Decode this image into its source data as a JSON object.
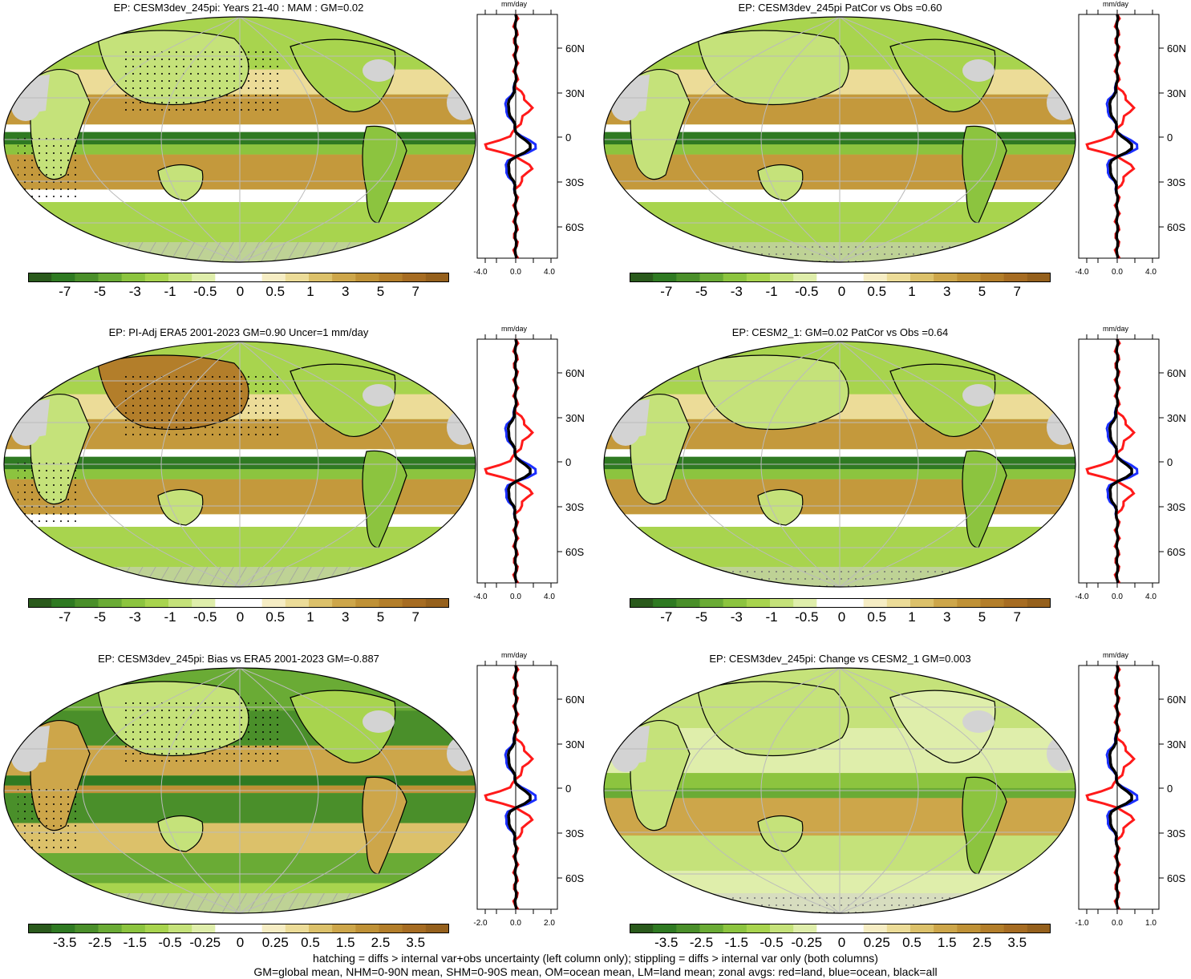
{
  "panels": [
    {
      "title": "EP: CESM3dev_245pi: Years 21-40 : MAM : GM=0.02",
      "zonal": {
        "units": "mm/day",
        "xticks": [
          "-4.0",
          "0.0",
          "4.0"
        ],
        "lat_labels": [
          "60N",
          "30N",
          "0",
          "30S",
          "60S"
        ]
      },
      "colorbar": {
        "labels": [
          "-7",
          "-5",
          "-3",
          "-1",
          "-0.5",
          "0",
          "0.5",
          "1",
          "3",
          "5",
          "7"
        ]
      }
    },
    {
      "title": "EP: CESM3dev_245pi PatCor vs Obs =0.60",
      "zonal": {
        "units": "mm/day",
        "xticks": [
          "-4.0",
          "0.0",
          "4.0"
        ],
        "lat_labels": [
          "60N",
          "30N",
          "0",
          "30S",
          "60S"
        ]
      },
      "colorbar": {
        "labels": [
          "-7",
          "-5",
          "-3",
          "-1",
          "-0.5",
          "0",
          "0.5",
          "1",
          "3",
          "5",
          "7"
        ]
      }
    },
    {
      "title": "EP: PI-Adj ERA5 2001-2023 GM=0.90 Uncer=1 mm/day",
      "zonal": {
        "units": "mm/day",
        "xticks": [
          "-4.0",
          "0.0",
          "4.0"
        ],
        "lat_labels": [
          "60N",
          "30N",
          "0",
          "30S",
          "60S"
        ]
      },
      "colorbar": {
        "labels": [
          "-7",
          "-5",
          "-3",
          "-1",
          "-0.5",
          "0",
          "0.5",
          "1",
          "3",
          "5",
          "7"
        ]
      }
    },
    {
      "title": "EP: CESM2_1: GM=0.02 PatCor vs Obs =0.64",
      "zonal": {
        "units": "mm/day",
        "xticks": [
          "-4.0",
          "0.0",
          "4.0"
        ],
        "lat_labels": [
          "60N",
          "30N",
          "0",
          "30S",
          "60S"
        ]
      },
      "colorbar": {
        "labels": [
          "-7",
          "-5",
          "-3",
          "-1",
          "-0.5",
          "0",
          "0.5",
          "1",
          "3",
          "5",
          "7"
        ]
      }
    },
    {
      "title": "EP: CESM3dev_245pi: Bias vs ERA5 2001-2023 GM=-0.887",
      "zonal": {
        "units": "mm/day",
        "xticks": [
          "-2.0",
          "0.0",
          "2.0"
        ],
        "lat_labels": [
          "60N",
          "30N",
          "0",
          "30S",
          "60S"
        ]
      },
      "colorbar": {
        "labels": [
          "-3.5",
          "-2.5",
          "-1.5",
          "-0.5",
          "-0.25",
          "0",
          "0.25",
          "0.5",
          "1.5",
          "2.5",
          "3.5"
        ]
      }
    },
    {
      "title": "EP: CESM3dev_245pi: Change vs CESM2_1 GM=0.003",
      "zonal": {
        "units": "mm/day",
        "xticks": [
          "-1.0",
          "0.0",
          "1.0"
        ],
        "lat_labels": [
          "60N",
          "30N",
          "0",
          "30S",
          "60S"
        ]
      },
      "colorbar": {
        "labels": [
          "-3.5",
          "-2.5",
          "-1.5",
          "-0.5",
          "-0.25",
          "0",
          "0.25",
          "0.5",
          "1.5",
          "2.5",
          "3.5"
        ]
      }
    }
  ],
  "colorbar_colors": [
    "#2a5a1c",
    "#2f7a22",
    "#4a8f2a",
    "#6aab35",
    "#8cc43f",
    "#a8d44e",
    "#c5e27a",
    "#dfeeab",
    "#ffffff",
    "#ffffff",
    "#f6edc4",
    "#ecdc98",
    "#dcc16a",
    "#cda64a",
    "#bf9136",
    "#b37e2a",
    "#a66c22",
    "#95601c"
  ],
  "footer": {
    "line1": "hatching = diffs > internal var+obs uncertainty (left column only); stippling = diffs > internal var only (both columns)",
    "line2": "GM=global mean, NHM=0-90N mean, SHM=0-90S mean, OM=ocean mean, LM=land mean; zonal avgs: red=land, blue=ocean, black=all"
  }
}
